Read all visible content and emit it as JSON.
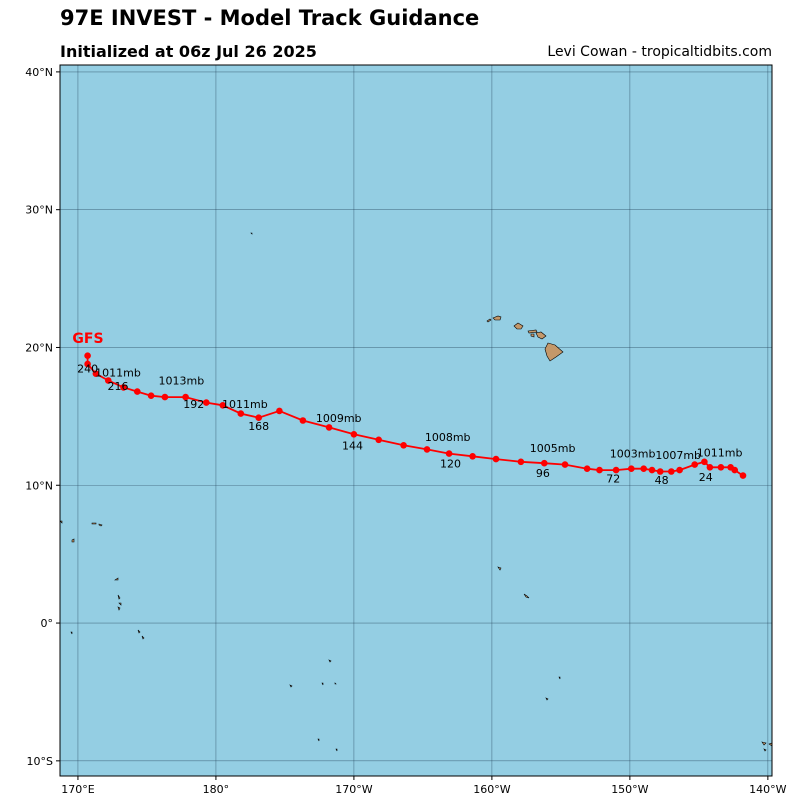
{
  "header": {
    "title": "97E INVEST - Model Track Guidance",
    "subtitle": "Initialized at 06z Jul 26 2025",
    "credit": "Levi Cowan - tropicaltidbits.com"
  },
  "colors": {
    "ocean": "#94cee3",
    "land": "#c4986a",
    "track": "#ff0000",
    "grid": "#1f3d55"
  },
  "map": {
    "lon_range": [
      168.7,
      220.3
    ],
    "lat_range": [
      -11.1,
      40.5
    ],
    "lat_ticks": [
      {
        "lat": 40,
        "label": "40°N"
      },
      {
        "lat": 30,
        "label": "30°N"
      },
      {
        "lat": 20,
        "label": "20°N"
      },
      {
        "lat": 10,
        "label": "10°N"
      },
      {
        "lat": 0,
        "label": "0°"
      },
      {
        "lat": -10,
        "label": "10°S"
      }
    ],
    "lon_ticks": [
      {
        "lon": 170,
        "label": "170°E"
      },
      {
        "lon": 180,
        "label": "180°"
      },
      {
        "lon": 190,
        "label": "170°W"
      },
      {
        "lon": 200,
        "label": "160°W"
      },
      {
        "lon": 210,
        "label": "150°W"
      },
      {
        "lon": 220,
        "label": "140°W"
      }
    ]
  },
  "track": {
    "model": "GFS",
    "points": [
      [
        218.2,
        10.7
      ],
      [
        217.6,
        11.1
      ],
      [
        217.3,
        11.3
      ],
      [
        216.6,
        11.3
      ],
      [
        215.8,
        11.3
      ],
      [
        215.4,
        11.7
      ],
      [
        214.7,
        11.5
      ],
      [
        213.6,
        11.1
      ],
      [
        213.0,
        11.0
      ],
      [
        212.2,
        11.0
      ],
      [
        211.6,
        11.1
      ],
      [
        211.0,
        11.2
      ],
      [
        210.1,
        11.2
      ],
      [
        209.0,
        11.1
      ],
      [
        207.8,
        11.1
      ],
      [
        206.9,
        11.2
      ],
      [
        205.3,
        11.5
      ],
      [
        203.8,
        11.6
      ],
      [
        202.1,
        11.7
      ],
      [
        200.3,
        11.9
      ],
      [
        198.6,
        12.1
      ],
      [
        196.9,
        12.3
      ],
      [
        195.3,
        12.6
      ],
      [
        193.6,
        12.9
      ],
      [
        191.8,
        13.3
      ],
      [
        190.0,
        13.7
      ],
      [
        188.2,
        14.2
      ],
      [
        186.3,
        14.7
      ],
      [
        184.6,
        15.4
      ],
      [
        183.1,
        14.9
      ],
      [
        181.8,
        15.2
      ],
      [
        180.5,
        15.8
      ],
      [
        179.3,
        16.0
      ],
      [
        177.8,
        16.4
      ],
      [
        176.3,
        16.4
      ],
      [
        175.3,
        16.5
      ],
      [
        174.3,
        16.8
      ],
      [
        173.3,
        17.1
      ],
      [
        172.2,
        17.6
      ],
      [
        171.3,
        18.1
      ],
      [
        170.7,
        18.8
      ],
      [
        170.7,
        19.4
      ]
    ],
    "labels": [
      {
        "lon": 216.5,
        "lat": 12.1,
        "text": "1011mb",
        "kind": "pressure"
      },
      {
        "lon": 213.5,
        "lat": 11.9,
        "text": "1007mb",
        "kind": "pressure"
      },
      {
        "lon": 210.2,
        "lat": 12.0,
        "text": "1003mb",
        "kind": "pressure"
      },
      {
        "lon": 204.4,
        "lat": 12.4,
        "text": "1005mb",
        "kind": "pressure"
      },
      {
        "lon": 196.8,
        "lat": 13.2,
        "text": "1008mb",
        "kind": "pressure"
      },
      {
        "lon": 188.9,
        "lat": 14.6,
        "text": "1009mb",
        "kind": "pressure"
      },
      {
        "lon": 182.1,
        "lat": 15.6,
        "text": "1011mb",
        "kind": "pressure"
      },
      {
        "lon": 177.5,
        "lat": 17.3,
        "text": "1013mb",
        "kind": "pressure"
      },
      {
        "lon": 172.9,
        "lat": 17.9,
        "text": "1011mb",
        "kind": "pressure"
      },
      {
        "lon": 215.5,
        "lat": 10.3,
        "text": "24",
        "kind": "hour"
      },
      {
        "lon": 212.3,
        "lat": 10.1,
        "text": "48",
        "kind": "hour"
      },
      {
        "lon": 208.8,
        "lat": 10.2,
        "text": "72",
        "kind": "hour"
      },
      {
        "lon": 203.7,
        "lat": 10.6,
        "text": "96",
        "kind": "hour"
      },
      {
        "lon": 197.0,
        "lat": 11.3,
        "text": "120",
        "kind": "hour"
      },
      {
        "lon": 189.9,
        "lat": 12.6,
        "text": "144",
        "kind": "hour"
      },
      {
        "lon": 183.1,
        "lat": 14.0,
        "text": "168",
        "kind": "hour"
      },
      {
        "lon": 178.4,
        "lat": 15.6,
        "text": "192",
        "kind": "hour"
      },
      {
        "lon": 172.9,
        "lat": 16.9,
        "text": "216",
        "kind": "hour"
      },
      {
        "lon": 170.7,
        "lat": 18.2,
        "text": "240",
        "kind": "hour"
      }
    ]
  }
}
